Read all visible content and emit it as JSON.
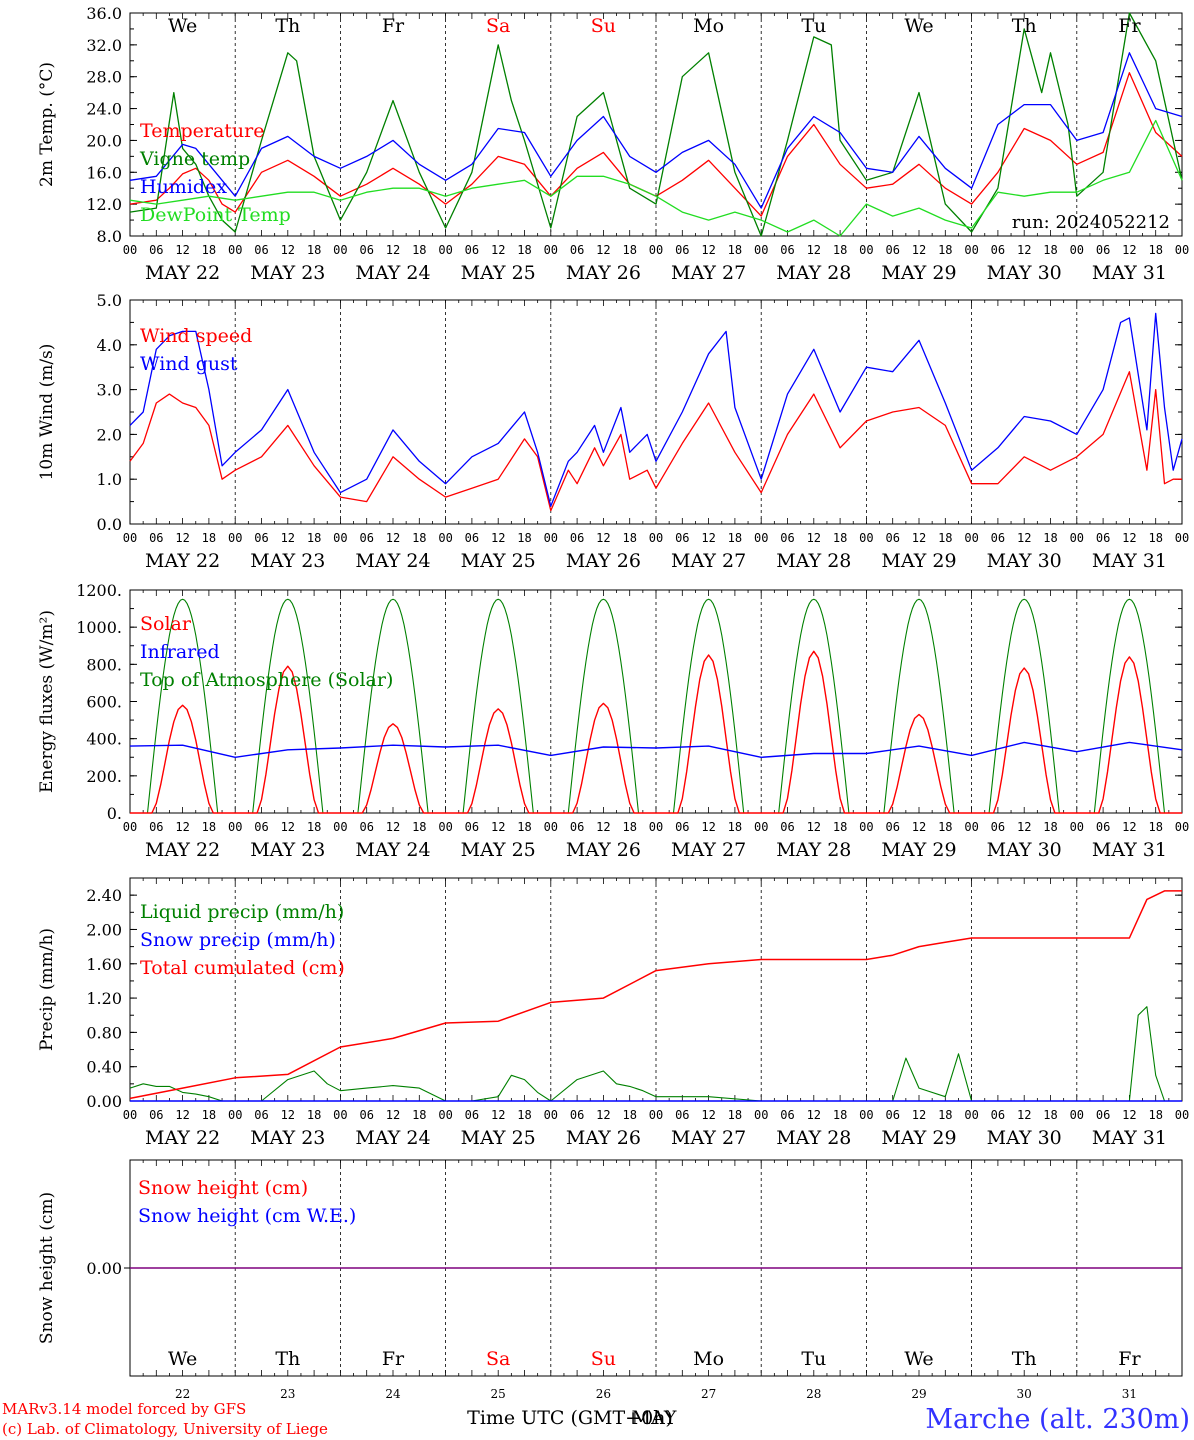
{
  "days": [
    "We",
    "Th",
    "Fr",
    "Sa",
    "Su",
    "Mo",
    "Tu",
    "We",
    "Th",
    "Fr"
  ],
  "weekend_days": [
    3,
    4
  ],
  "dates": [
    "MAY 22",
    "MAY 23",
    "MAY 24",
    "MAY 25",
    "MAY 26",
    "MAY 27",
    "MAY 28",
    "MAY 29",
    "MAY 30",
    "MAY 31"
  ],
  "day_numbers": [
    "22",
    "23",
    "24",
    "25",
    "26",
    "27",
    "28",
    "29",
    "30",
    "31"
  ],
  "hour_ticks": [
    "00",
    "06",
    "12",
    "18"
  ],
  "end_tick": "00",
  "run_label": "run: 2024052212",
  "xlabel": "Time UTC (GMT+0h)",
  "xlabel_overlay": "MAY",
  "credit_line1": "MARv3.14 model forced by GFS",
  "credit_line2": "(c) Lab. of Climatology, University of Liege",
  "location": "Marche (alt. 230m)",
  "colors": {
    "red": "#ff0000",
    "green": "#008000",
    "blue": "#0000ff",
    "lime": "#22dd22",
    "purple": "#7f007f"
  },
  "chart_data": [
    {
      "type": "line",
      "ylabel": "2m Temp. (°C)",
      "ylim": [
        8,
        36
      ],
      "yticks": [
        "8.0",
        "12.0",
        "16.0",
        "20.0",
        "24.0",
        "28.0",
        "32.0",
        "36.0"
      ],
      "xlim_hours": [
        0,
        240
      ],
      "series": [
        {
          "name": "Temperature",
          "color": "#ff0000",
          "x": [
            0,
            6,
            9,
            12,
            15,
            18,
            21,
            24,
            30,
            36,
            42,
            48,
            54,
            60,
            66,
            72,
            78,
            84,
            90,
            96,
            102,
            108,
            114,
            120,
            126,
            132,
            138,
            144,
            150,
            156,
            162,
            168,
            174,
            180,
            186,
            192,
            198,
            204,
            210,
            216,
            222,
            228,
            234,
            240
          ],
          "y": [
            12,
            12.5,
            14,
            15.8,
            16.5,
            15,
            12,
            11,
            16,
            17.5,
            15.5,
            13,
            14.5,
            16.5,
            14.5,
            12,
            14.5,
            18,
            17,
            13,
            16.5,
            18.5,
            14.5,
            13,
            15,
            17.5,
            14,
            10.5,
            18,
            22,
            17,
            14,
            14.5,
            17,
            14,
            12,
            16,
            21.5,
            20,
            17,
            18.5,
            28.5,
            21,
            18
          ]
        },
        {
          "name": "Vigne temp",
          "color": "#008000",
          "x": [
            0,
            6,
            10,
            12,
            15,
            18,
            21,
            24,
            30,
            36,
            38,
            42,
            48,
            54,
            60,
            66,
            72,
            78,
            84,
            87,
            90,
            96,
            102,
            106,
            108,
            110,
            114,
            120,
            126,
            132,
            138,
            144,
            150,
            156,
            160,
            162,
            168,
            174,
            180,
            186,
            192,
            198,
            204,
            208,
            210,
            214,
            216,
            222,
            228,
            234,
            240
          ],
          "y": [
            11,
            11.5,
            26,
            19,
            17,
            13,
            10,
            8.5,
            20,
            31,
            30,
            18,
            10,
            16,
            25,
            16,
            9,
            16,
            32,
            25,
            20,
            9,
            23,
            25,
            26,
            22,
            14,
            12,
            28,
            31,
            16,
            8,
            20,
            33,
            32,
            20,
            15,
            16,
            26,
            12,
            8.5,
            14,
            34,
            26,
            31,
            22,
            13,
            16,
            36,
            30,
            15
          ]
        },
        {
          "name": "Humidex",
          "color": "#0000ff",
          "x": [
            0,
            6,
            12,
            15,
            18,
            21,
            24,
            30,
            36,
            42,
            48,
            54,
            60,
            66,
            72,
            78,
            84,
            90,
            96,
            102,
            108,
            114,
            120,
            126,
            132,
            138,
            144,
            150,
            156,
            162,
            168,
            174,
            180,
            186,
            192,
            198,
            204,
            210,
            216,
            222,
            228,
            234,
            240
          ],
          "y": [
            15,
            15.5,
            19.5,
            19,
            17,
            15,
            13,
            19,
            20.5,
            18,
            16.5,
            18,
            20,
            17,
            15,
            17,
            21.5,
            21,
            15.5,
            20,
            23,
            18,
            16,
            18.5,
            20,
            17,
            11.5,
            19,
            23,
            21,
            16.5,
            16,
            20.5,
            16.5,
            14,
            22,
            24.5,
            24.5,
            20,
            21,
            31,
            24,
            23
          ]
        },
        {
          "name": "DewPoint Temp",
          "color": "#22dd22",
          "x": [
            0,
            6,
            12,
            18,
            24,
            30,
            36,
            42,
            48,
            54,
            60,
            66,
            72,
            78,
            84,
            90,
            96,
            102,
            108,
            114,
            120,
            126,
            132,
            138,
            144,
            150,
            156,
            162,
            168,
            174,
            180,
            186,
            192,
            198,
            204,
            210,
            216,
            222,
            228,
            234,
            240
          ],
          "y": [
            12.5,
            12,
            12.5,
            13,
            12.5,
            13,
            13.5,
            13.5,
            12.5,
            13.5,
            14,
            14,
            13,
            14,
            14.5,
            15,
            13,
            15.5,
            15.5,
            14.5,
            13,
            11,
            10,
            11,
            10,
            8.5,
            10,
            8,
            12,
            10.5,
            11.5,
            10,
            9,
            13.5,
            13,
            13.5,
            13.5,
            15,
            16,
            22.5,
            15
          ]
        }
      ],
      "legend": [
        "Temperature",
        "Vigne temp",
        "Humidex",
        "DewPoint Temp"
      ]
    },
    {
      "type": "line",
      "ylabel": "10m Wind (m/s)",
      "ylim": [
        0,
        5
      ],
      "yticks": [
        "0.0",
        "1.0",
        "2.0",
        "3.0",
        "4.0",
        "5.0"
      ],
      "xlim_hours": [
        0,
        240
      ],
      "series": [
        {
          "name": "Wind speed",
          "color": "#ff0000",
          "x": [
            0,
            3,
            6,
            9,
            12,
            15,
            18,
            21,
            24,
            30,
            36,
            42,
            48,
            54,
            60,
            66,
            72,
            78,
            84,
            90,
            93,
            96,
            100,
            102,
            106,
            108,
            112,
            114,
            118,
            120,
            126,
            132,
            138,
            144,
            150,
            156,
            162,
            168,
            174,
            180,
            186,
            192,
            198,
            204,
            210,
            216,
            222,
            228,
            232,
            234,
            236,
            238,
            240
          ],
          "y": [
            1.4,
            1.8,
            2.7,
            2.9,
            2.7,
            2.6,
            2.2,
            1.0,
            1.2,
            1.5,
            2.2,
            1.3,
            0.6,
            0.5,
            1.5,
            1.0,
            0.6,
            0.8,
            1.0,
            1.9,
            1.5,
            0.3,
            1.2,
            0.9,
            1.7,
            1.3,
            2.0,
            1.0,
            1.2,
            0.8,
            1.8,
            2.7,
            1.6,
            0.7,
            2.0,
            2.9,
            1.7,
            2.3,
            2.5,
            2.6,
            2.2,
            0.9,
            0.9,
            1.5,
            1.2,
            1.5,
            2.0,
            3.4,
            1.2,
            3.0,
            0.9,
            1.0,
            1.0
          ]
        },
        {
          "name": "Wind gust",
          "color": "#0000ff",
          "x": [
            0,
            3,
            6,
            9,
            12,
            15,
            18,
            21,
            24,
            30,
            36,
            42,
            48,
            54,
            60,
            66,
            72,
            78,
            84,
            90,
            93,
            96,
            100,
            102,
            106,
            108,
            112,
            114,
            118,
            120,
            126,
            132,
            136,
            138,
            144,
            150,
            156,
            162,
            168,
            174,
            180,
            186,
            192,
            198,
            204,
            210,
            216,
            222,
            226,
            228,
            232,
            234,
            236,
            238,
            240
          ],
          "y": [
            2.2,
            2.5,
            3.9,
            4.2,
            4.3,
            4.3,
            3.0,
            1.3,
            1.6,
            2.1,
            3.0,
            1.6,
            0.7,
            1.0,
            2.1,
            1.4,
            0.9,
            1.5,
            1.8,
            2.5,
            1.6,
            0.4,
            1.4,
            1.6,
            2.2,
            1.6,
            2.6,
            1.6,
            2.0,
            1.4,
            2.5,
            3.8,
            4.3,
            2.6,
            1.0,
            2.9,
            3.9,
            2.5,
            3.5,
            3.4,
            4.1,
            2.7,
            1.2,
            1.7,
            2.4,
            2.3,
            2.0,
            3.0,
            4.5,
            4.6,
            2.1,
            4.7,
            2.6,
            1.2,
            1.9
          ]
        }
      ],
      "legend": [
        "Wind speed",
        "Wind gust"
      ]
    },
    {
      "type": "line",
      "ylabel": "Energy fluxes (W/m²)",
      "ylim": [
        0,
        1200
      ],
      "yticks": [
        "0.",
        "200.",
        "400.",
        "600.",
        "800.",
        "1000.",
        "1200."
      ],
      "xlim_hours": [
        0,
        240
      ],
      "series": [
        {
          "name": "Solar",
          "color": "#ff0000",
          "peaks": [
            580,
            790,
            480,
            560,
            590,
            850,
            870,
            530,
            780,
            840
          ],
          "x": [],
          "y": []
        },
        {
          "name": "Infrared",
          "color": "#0000ff",
          "x": [
            0,
            12,
            24,
            36,
            48,
            60,
            72,
            84,
            96,
            108,
            120,
            132,
            144,
            156,
            168,
            180,
            192,
            204,
            216,
            228,
            240
          ],
          "y": [
            360,
            365,
            300,
            340,
            350,
            365,
            355,
            365,
            310,
            355,
            350,
            360,
            300,
            320,
            320,
            360,
            310,
            380,
            330,
            380,
            340
          ]
        },
        {
          "name": "Top of Atmosphere (Solar)",
          "color": "#008000",
          "peak": 1150,
          "x": [],
          "y": []
        }
      ],
      "legend": [
        "Solar",
        "Infrared",
        "Top of Atmosphere (Solar)"
      ]
    },
    {
      "type": "line",
      "ylabel": "Precip (mm/h)",
      "ylim": [
        0,
        2.6
      ],
      "yticks": [
        "0.00",
        "0.40",
        "0.80",
        "1.20",
        "1.60",
        "2.00",
        "2.40"
      ],
      "xlim_hours": [
        0,
        240
      ],
      "series": [
        {
          "name": "Liquid precip (mm/h)",
          "color": "#008000",
          "x": [
            0,
            3,
            6,
            9,
            12,
            15,
            18,
            21,
            24,
            30,
            36,
            42,
            45,
            48,
            54,
            60,
            66,
            72,
            78,
            84,
            87,
            90,
            93,
            96,
            102,
            108,
            111,
            114,
            117,
            120,
            132,
            144,
            168,
            174,
            177,
            180,
            186,
            189,
            192,
            228,
            230,
            232,
            234,
            236,
            238,
            240
          ],
          "y": [
            0.15,
            0.2,
            0.17,
            0.17,
            0.1,
            0.08,
            0.05,
            0.0,
            0.0,
            0.0,
            0.25,
            0.35,
            0.2,
            0.12,
            0.15,
            0.18,
            0.15,
            0.0,
            0.0,
            0.05,
            0.3,
            0.25,
            0.1,
            0.0,
            0.25,
            0.35,
            0.2,
            0.17,
            0.12,
            0.05,
            0.05,
            0.0,
            0.0,
            0.0,
            0.5,
            0.15,
            0.05,
            0.55,
            0.0,
            0.0,
            1.0,
            1.1,
            0.3,
            0.0,
            0.0,
            0.0
          ]
        },
        {
          "name": "Snow precip (mm/h)",
          "color": "#0000ff",
          "x": [
            0,
            240
          ],
          "y": [
            0,
            0
          ]
        },
        {
          "name": "Total cumulated (cm)",
          "color": "#ff0000",
          "x": [
            0,
            12,
            24,
            36,
            48,
            60,
            72,
            84,
            96,
            108,
            120,
            132,
            144,
            156,
            168,
            174,
            180,
            186,
            192,
            204,
            216,
            228,
            232,
            236,
            240
          ],
          "y": [
            0.03,
            0.15,
            0.27,
            0.31,
            0.63,
            0.73,
            0.91,
            0.93,
            1.15,
            1.2,
            1.52,
            1.6,
            1.65,
            1.65,
            1.65,
            1.7,
            1.8,
            1.85,
            1.9,
            1.9,
            1.9,
            1.9,
            2.35,
            2.45,
            2.45
          ]
        }
      ],
      "legend": [
        "Liquid precip (mm/h)",
        "Snow precip (mm/h)",
        "Total cumulated (cm)"
      ]
    },
    {
      "type": "line",
      "ylabel": "Snow height (cm)",
      "yticks": [
        "0.00"
      ],
      "xlim_hours": [
        0,
        240
      ],
      "series": [
        {
          "name": "Snow height (cm)",
          "color": "#ff0000",
          "x": [
            0,
            240
          ],
          "y": [
            0,
            0
          ]
        },
        {
          "name": "Snow height (cm W.E.)",
          "color": "#0000ff",
          "x": [
            0,
            240
          ],
          "y": [
            0,
            0
          ]
        }
      ],
      "legend": [
        "Snow height (cm)",
        "Snow height (cm W.E.)"
      ]
    }
  ]
}
